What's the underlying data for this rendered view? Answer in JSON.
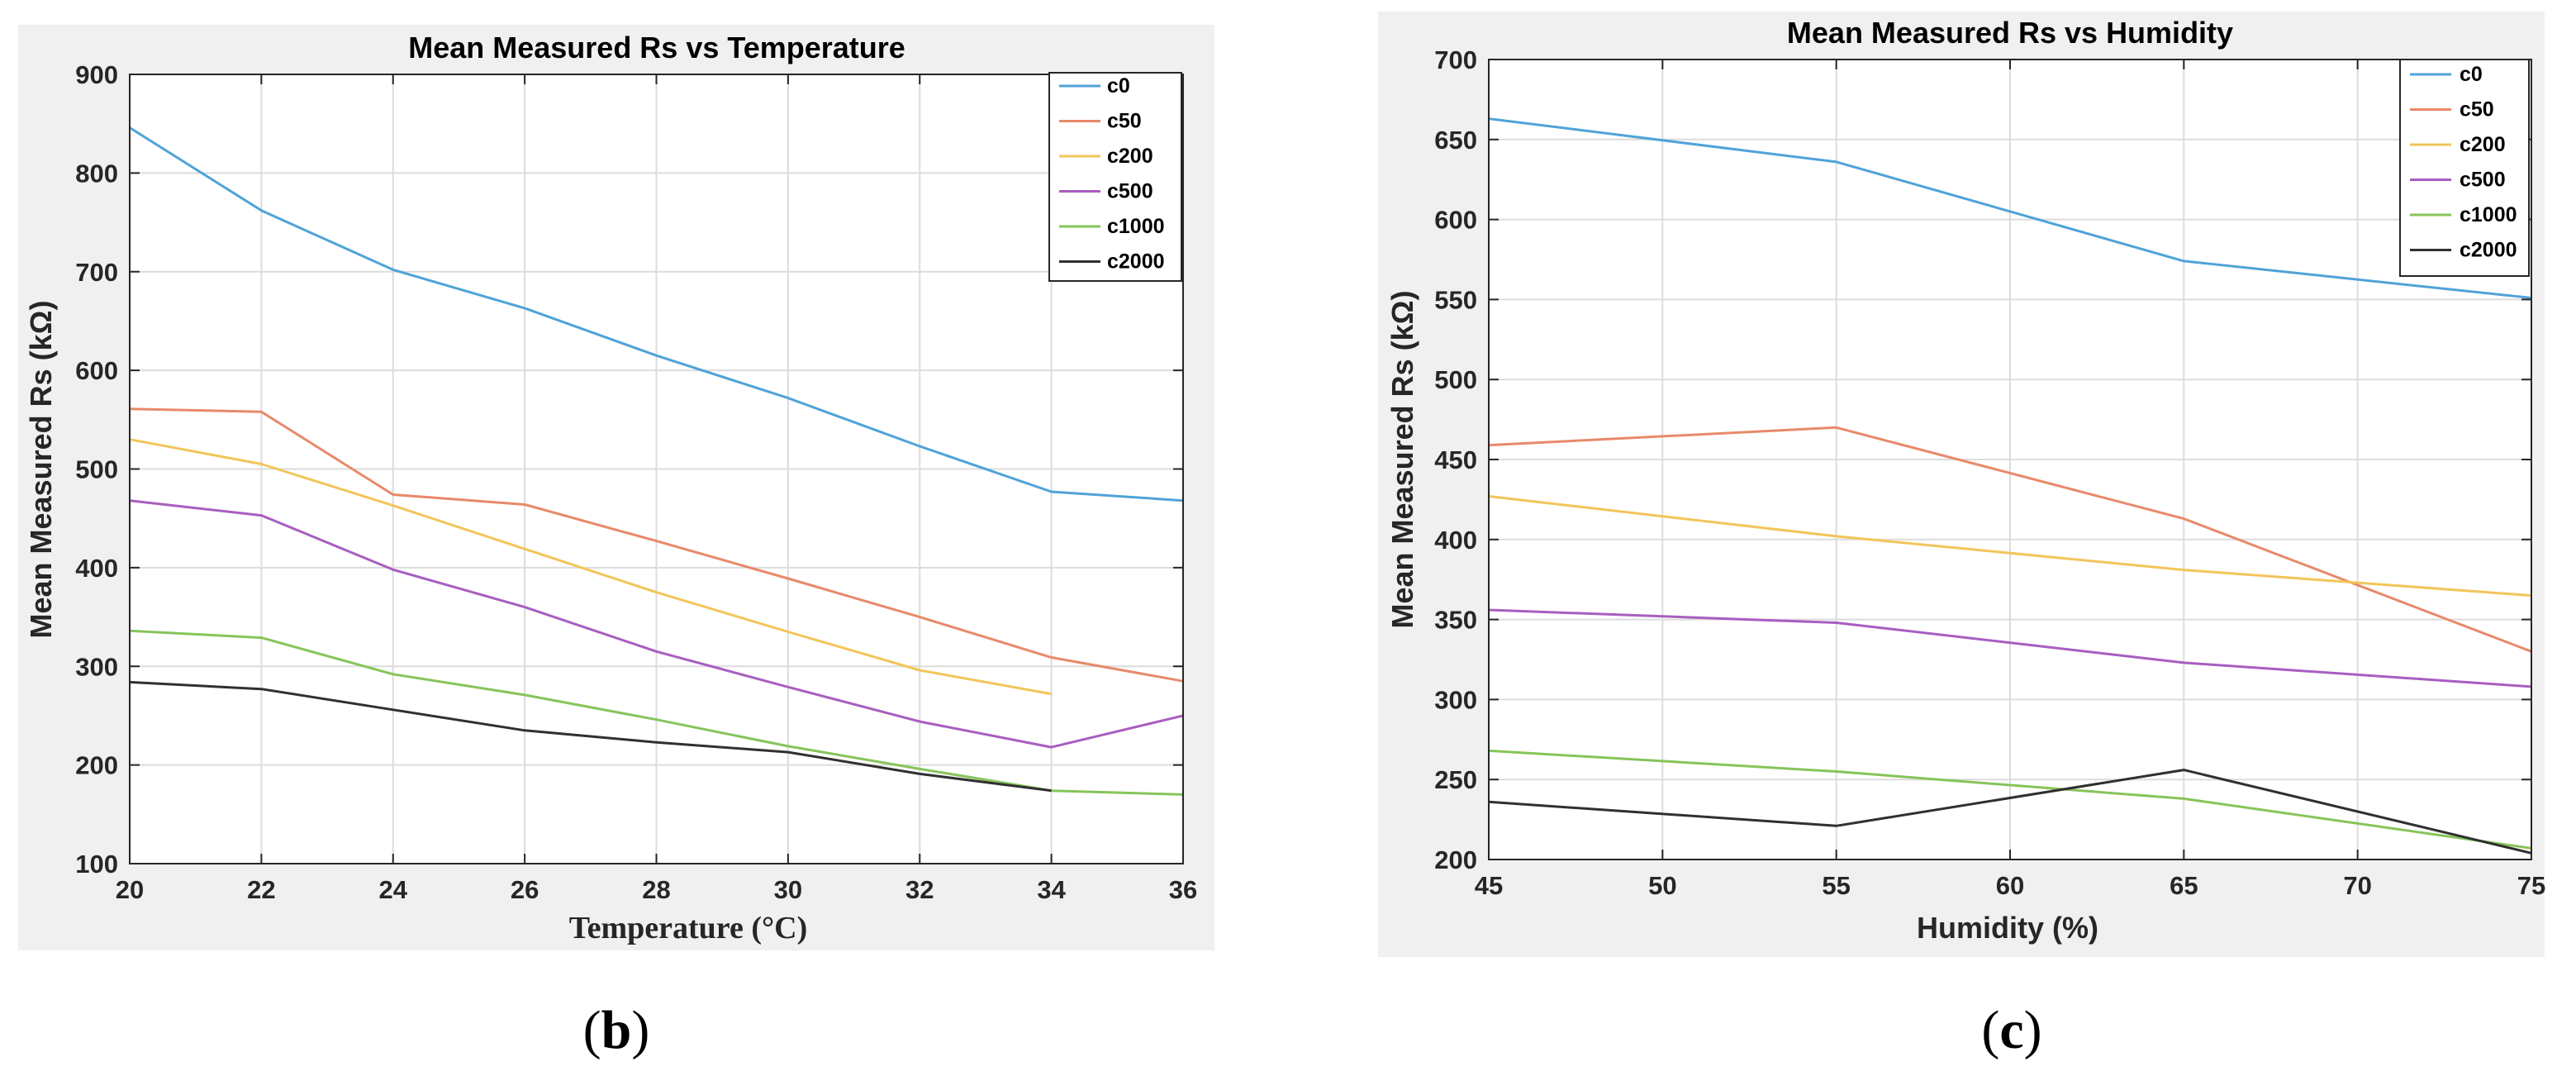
{
  "colors": {
    "c0": "#4fa3d8",
    "c50": "#e8896a",
    "c200": "#f2c55a",
    "c500": "#a85ec0",
    "c1000": "#86c45a",
    "c2000": "#303030"
  },
  "chart_data": [
    {
      "type": "line",
      "title": "Mean Measured Rs vs Temperature",
      "xlabel": "Temperature (°C)",
      "ylabel": "Mean Measured Rs (kΩ)",
      "xlim": [
        20,
        36
      ],
      "ylim": [
        100,
        900
      ],
      "xticks": [
        "20",
        "22",
        "24",
        "26",
        "28",
        "30",
        "32",
        "34",
        "36"
      ],
      "yticks": [
        "100",
        "200",
        "300",
        "400",
        "500",
        "600",
        "700",
        "800",
        "900"
      ],
      "grid": true,
      "legend_position": "top-right",
      "caption": "b",
      "series": [
        {
          "name": "c0",
          "x": [
            20,
            22,
            24,
            26,
            28,
            30,
            32,
            34,
            36
          ],
          "values": [
            846,
            762,
            702,
            663,
            615,
            572,
            523,
            477,
            468
          ]
        },
        {
          "name": "c50",
          "x": [
            20,
            22,
            24,
            26,
            28,
            30,
            32,
            34,
            36
          ],
          "values": [
            561,
            558,
            474,
            464,
            427,
            389,
            350,
            309,
            285
          ]
        },
        {
          "name": "c200",
          "x": [
            20,
            22,
            24,
            26,
            28,
            30,
            32,
            34
          ],
          "values": [
            530,
            505,
            463,
            419,
            375,
            335,
            296,
            272
          ]
        },
        {
          "name": "c500",
          "x": [
            20,
            22,
            24,
            26,
            28,
            30,
            32,
            34,
            36
          ],
          "values": [
            468,
            453,
            398,
            360,
            315,
            279,
            244,
            218,
            250
          ]
        },
        {
          "name": "c1000",
          "x": [
            20,
            22,
            24,
            26,
            28,
            30,
            32,
            34,
            36
          ],
          "values": [
            336,
            329,
            292,
            271,
            246,
            219,
            196,
            174,
            170
          ]
        },
        {
          "name": "c2000",
          "x": [
            20,
            22,
            24,
            26,
            28,
            30,
            32,
            34
          ],
          "values": [
            284,
            277,
            256,
            235,
            223,
            213,
            191,
            174
          ]
        }
      ]
    },
    {
      "type": "line",
      "title": "Mean Measured Rs vs Humidity",
      "xlabel": "Humidity (%)",
      "ylabel": "Mean Measured Rs (kΩ)",
      "xlim": [
        45,
        75
      ],
      "ylim": [
        200,
        700
      ],
      "xticks": [
        "45",
        "50",
        "55",
        "60",
        "65",
        "70",
        "75"
      ],
      "yticks": [
        "200",
        "250",
        "300",
        "350",
        "400",
        "450",
        "500",
        "550",
        "600",
        "650",
        "700"
      ],
      "grid": true,
      "legend_position": "top-right",
      "caption": "c",
      "series": [
        {
          "name": "c0",
          "x": [
            45,
            55,
            65,
            75
          ],
          "values": [
            663,
            636,
            574,
            551
          ]
        },
        {
          "name": "c50",
          "x": [
            45,
            55,
            65,
            75
          ],
          "values": [
            459,
            470,
            413,
            330
          ]
        },
        {
          "name": "c200",
          "x": [
            45,
            55,
            65,
            75
          ],
          "values": [
            427,
            402,
            381,
            365
          ]
        },
        {
          "name": "c500",
          "x": [
            45,
            55,
            65,
            75
          ],
          "values": [
            356,
            348,
            323,
            308
          ]
        },
        {
          "name": "c1000",
          "x": [
            45,
            55,
            65,
            75
          ],
          "values": [
            268,
            255,
            238,
            207
          ]
        },
        {
          "name": "c2000",
          "x": [
            45,
            55,
            65,
            75
          ],
          "values": [
            236,
            221,
            256,
            204
          ]
        }
      ]
    }
  ]
}
